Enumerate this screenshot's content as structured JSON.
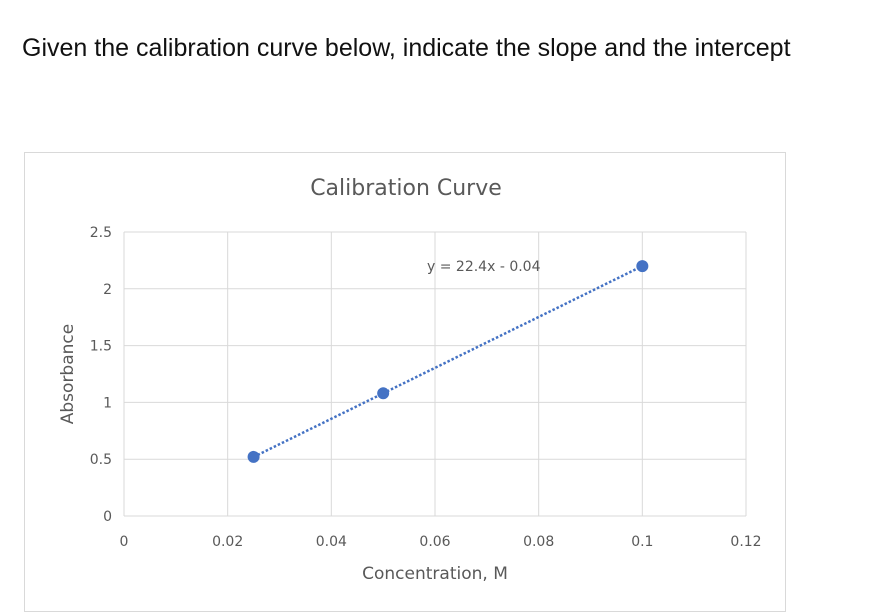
{
  "question": {
    "text": "Given the calibration curve below, indicate the slope and the intercept"
  },
  "chart_data": {
    "type": "scatter",
    "title": "Calibration Curve",
    "xlabel": "Concentration, M",
    "ylabel": "Absorbance",
    "xlim": [
      0,
      0.12
    ],
    "ylim": [
      0,
      2.5
    ],
    "x_ticks": [
      "0",
      "0.02",
      "0.04",
      "0.06",
      "0.08",
      "0.1",
      "0.12"
    ],
    "y_ticks": [
      "0",
      "0.5",
      "1",
      "1.5",
      "2",
      "2.5"
    ],
    "grid": true,
    "series": [
      {
        "x": [
          0.025,
          0.05,
          0.1
        ],
        "y": [
          0.52,
          1.08,
          2.2
        ],
        "color": "#4472c4"
      }
    ],
    "trendline": {
      "type": "linear",
      "slope": 22.4,
      "intercept": -0.04,
      "x_range": [
        0.025,
        0.1
      ],
      "style": "dotted",
      "color": "#4472c4",
      "equation": "y = 22.4x - 0.04"
    }
  }
}
